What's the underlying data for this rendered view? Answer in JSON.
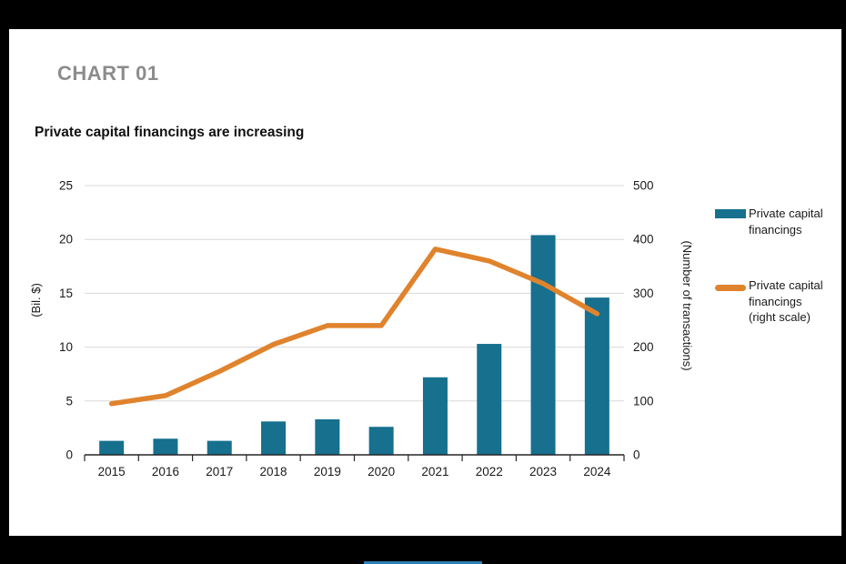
{
  "frame": {
    "background": "#000000",
    "panel_background": "#ffffff",
    "accent_bar_color": "#2f7fb4"
  },
  "header": {
    "kicker": "CHART 01",
    "title": "Private capital financings are increasing"
  },
  "chart_data": {
    "type": "combo-bar-line",
    "title": "Private capital financings are increasing",
    "categories": [
      "2015",
      "2016",
      "2017",
      "2018",
      "2019",
      "2020",
      "2021",
      "2022",
      "2023",
      "2024"
    ],
    "series": [
      {
        "name": "Private capital financings",
        "type": "bar",
        "axis": "left",
        "color": "#16708e",
        "values": [
          1.3,
          1.5,
          1.3,
          3.1,
          3.3,
          2.6,
          7.2,
          10.3,
          20.4,
          14.6
        ]
      },
      {
        "name": "Private capital financings (right scale)",
        "type": "line",
        "axis": "right",
        "color": "#e0832d",
        "values": [
          95,
          110,
          155,
          205,
          240,
          240,
          382,
          360,
          318,
          262
        ]
      }
    ],
    "left_axis": {
      "label": "(Bil. $)",
      "ticks": [
        0,
        5,
        10,
        15,
        20,
        25
      ],
      "range": [
        0,
        25
      ]
    },
    "right_axis": {
      "label": "(Number of transactions)",
      "ticks": [
        0,
        100,
        200,
        300,
        400,
        500
      ],
      "range": [
        0,
        500
      ]
    },
    "grid": true,
    "legend_position": "right",
    "legend": [
      {
        "swatch": "bar",
        "color": "#16708e",
        "label_lines": [
          "Private capital",
          "financings"
        ]
      },
      {
        "swatch": "line",
        "color": "#e0832d",
        "label_lines": [
          "Private capital",
          "financings",
          "(right scale)"
        ]
      }
    ],
    "colors": {
      "axis": "#262626",
      "grid": "#d8d8d8",
      "text": "#1a1a1a",
      "kicker": "#8c8c8c"
    }
  }
}
